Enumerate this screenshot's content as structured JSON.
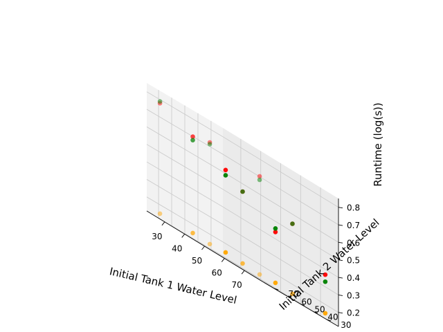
{
  "chart_data": {
    "type": "scatter",
    "projection": "3d",
    "title": "",
    "xlabel": "Initial Tank 1 Water Level",
    "ylabel": "Initial Tank 2 Water Level",
    "zlabel": "Runtime (log(s))",
    "xlim": [
      21,
      79
    ],
    "ylim": [
      21,
      79
    ],
    "zlim": [
      0.12,
      0.85
    ],
    "xticks": [
      "30",
      "40",
      "50",
      "60",
      "70"
    ],
    "yticks": [
      "30",
      "40",
      "50",
      "60",
      "70"
    ],
    "zticks": [
      "0.2",
      "0.3",
      "0.4",
      "0.5",
      "0.6",
      "0.7",
      "0.8"
    ],
    "grid": true,
    "legend": null,
    "series": [
      {
        "color": "#ff0000",
        "points": [
          {
            "x": 25,
            "y": 25,
            "z": 0.62
          },
          {
            "x": 25,
            "y": 50,
            "z": 0.7
          },
          {
            "x": 25,
            "y": 75,
            "z": 0.78
          },
          {
            "x": 50,
            "y": 25,
            "z": 0.44
          },
          {
            "x": 50,
            "y": 50,
            "z": 0.56
          },
          {
            "x": 50,
            "y": 75,
            "z": 0.73
          },
          {
            "x": 75,
            "y": 25,
            "z": 0.37
          },
          {
            "x": 75,
            "y": 50,
            "z": 0.55
          },
          {
            "x": 75,
            "y": 75,
            "z": 0.71
          }
        ]
      },
      {
        "color": "#008000",
        "points": [
          {
            "x": 25,
            "y": 25,
            "z": 0.59
          },
          {
            "x": 25,
            "y": 50,
            "z": 0.68
          },
          {
            "x": 25,
            "y": 75,
            "z": 0.79
          },
          {
            "x": 50,
            "y": 25,
            "z": 0.46
          },
          {
            "x": 50,
            "y": 50,
            "z": 0.56
          },
          {
            "x": 50,
            "y": 75,
            "z": 0.72
          },
          {
            "x": 75,
            "y": 25,
            "z": 0.33
          },
          {
            "x": 75,
            "y": 50,
            "z": 0.55
          },
          {
            "x": 75,
            "y": 75,
            "z": 0.69
          }
        ]
      },
      {
        "color": "#ffa500",
        "points": [
          {
            "x": 25,
            "y": 25,
            "z": 0.15
          },
          {
            "x": 25,
            "y": 50,
            "z": 0.15
          },
          {
            "x": 25,
            "y": 75,
            "z": 0.15
          },
          {
            "x": 50,
            "y": 25,
            "z": 0.15
          },
          {
            "x": 50,
            "y": 50,
            "z": 0.15
          },
          {
            "x": 50,
            "y": 75,
            "z": 0.15
          },
          {
            "x": 75,
            "y": 25,
            "z": 0.15
          },
          {
            "x": 75,
            "y": 50,
            "z": 0.15
          },
          {
            "x": 75,
            "y": 75,
            "z": 0.15
          }
        ]
      }
    ]
  }
}
